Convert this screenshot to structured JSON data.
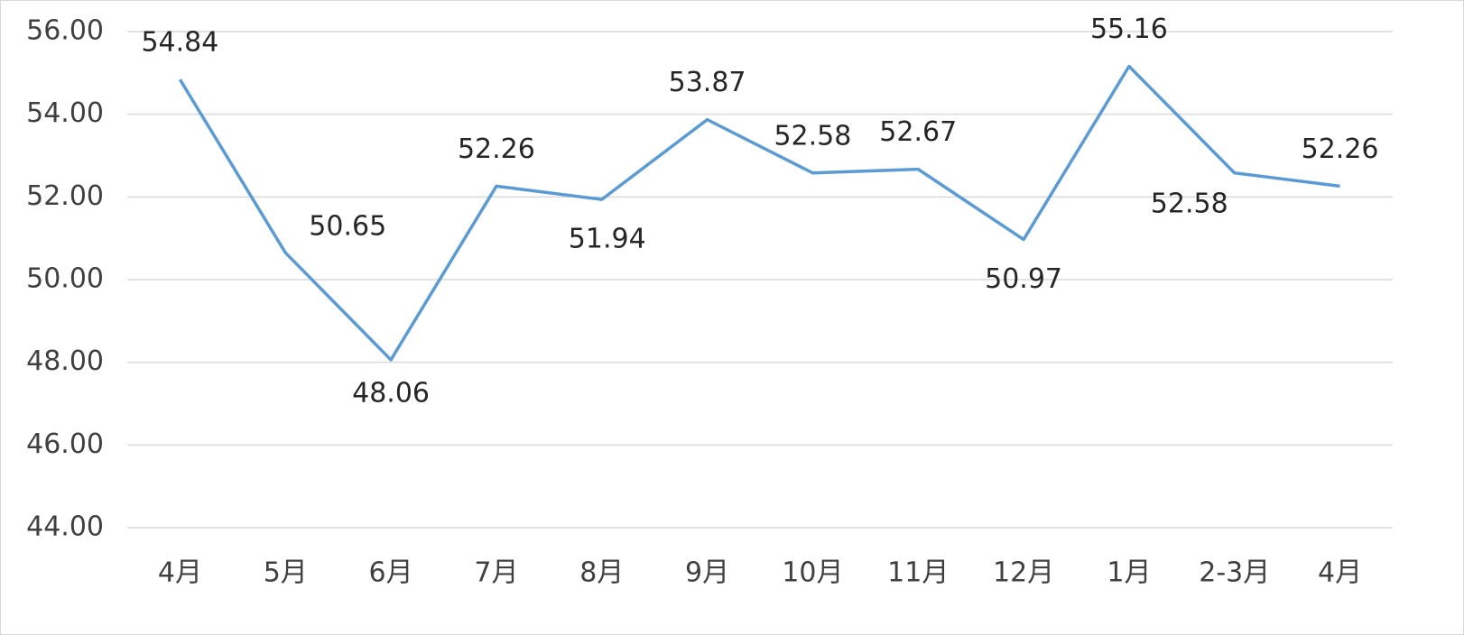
{
  "chart_data": {
    "type": "line",
    "categories": [
      "4月",
      "5月",
      "6月",
      "7月",
      "8月",
      "9月",
      "10月",
      "11月",
      "12月",
      "1月",
      "2-3月",
      "4月"
    ],
    "series": [
      {
        "color": "#5b9bd5",
        "values": [
          54.84,
          50.65,
          48.06,
          52.26,
          51.94,
          53.87,
          52.58,
          52.67,
          50.97,
          55.16,
          52.58,
          52.26
        ]
      }
    ],
    "ylim": [
      44,
      56
    ],
    "yticks": [
      {
        "value": 44,
        "label": "44.00"
      },
      {
        "value": 46,
        "label": "46.00"
      },
      {
        "value": 48,
        "label": "48.00"
      },
      {
        "value": 50,
        "label": "50.00"
      },
      {
        "value": 52,
        "label": "52.00"
      },
      {
        "value": 54,
        "label": "54.00"
      },
      {
        "value": 56,
        "label": "56.00"
      }
    ],
    "grid": true
  }
}
